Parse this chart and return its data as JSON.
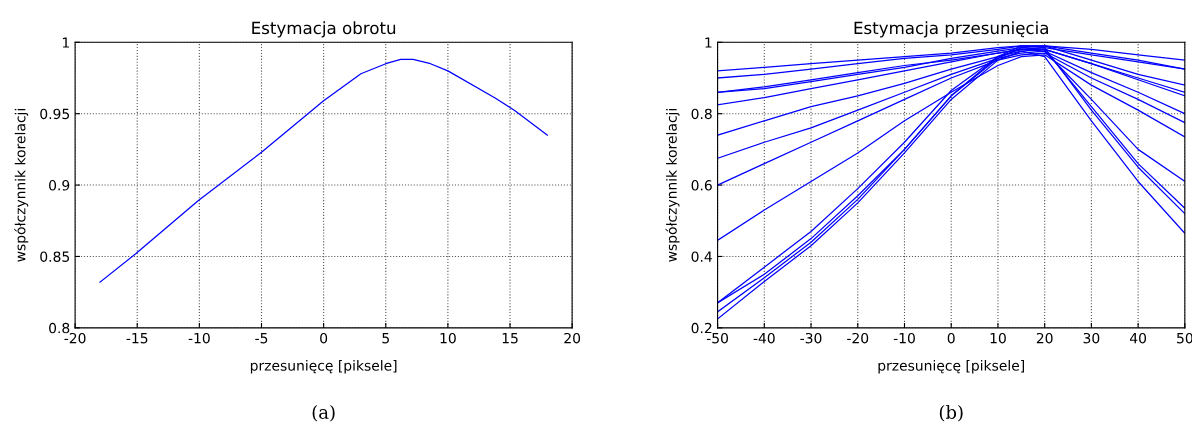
{
  "chart_data": [
    {
      "type": "line",
      "title": "Estymacja obrotu",
      "xlabel": "przesunięcę [piksele]",
      "ylabel": "współczynnik korelacji",
      "annotations": [
        "(a)"
      ],
      "xlim": [
        -20,
        20
      ],
      "ylim": [
        0.8,
        1
      ],
      "xticks": [
        -20,
        -15,
        -10,
        -5,
        0,
        5,
        10,
        15,
        20
      ],
      "yticks": [
        0.8,
        0.85,
        0.9,
        0.95,
        1
      ],
      "grid": true,
      "series": [
        {
          "color": "#0000ff",
          "x": [
            -18.0,
            -15.1,
            -10.1,
            -5.0,
            0,
            3.0,
            5.0,
            6.2,
            7.2,
            8.6,
            10,
            13.8,
            15.4,
            18.0
          ],
          "values": [
            0.832,
            0.852,
            0.889,
            0.923,
            0.959,
            0.978,
            0.985,
            0.988,
            0.988,
            0.985,
            0.98,
            0.961,
            0.952,
            0.935
          ]
        }
      ]
    },
    {
      "type": "line",
      "title": "Estymacja przesunięcia",
      "xlabel": "przesunięcę [piksele]",
      "ylabel": "współczynnik korelacji",
      "annotations": [
        "(b)"
      ],
      "xlim": [
        -50,
        50
      ],
      "ylim": [
        0.2,
        1
      ],
      "xticks": [
        -50,
        -40,
        -30,
        -20,
        -10,
        0,
        10,
        20,
        30,
        40,
        50
      ],
      "yticks": [
        0.2,
        0.4,
        0.6,
        0.8,
        1
      ],
      "grid": true,
      "x": [
        -50,
        -40,
        -30,
        -20,
        -10,
        0,
        10,
        15,
        20,
        30,
        40,
        50
      ],
      "series": [
        {
          "color": "#0000ff",
          "values": [
            0.92,
            0.93,
            0.94,
            0.95,
            0.96,
            0.97,
            0.985,
            0.99,
            0.99,
            0.98,
            0.965,
            0.95
          ]
        },
        {
          "color": "#0000ff",
          "values": [
            0.9,
            0.91,
            0.925,
            0.94,
            0.955,
            0.965,
            0.98,
            0.99,
            0.99,
            0.97,
            0.95,
            0.925
          ]
        },
        {
          "color": "#0000ff",
          "values": [
            0.86,
            0.875,
            0.895,
            0.915,
            0.935,
            0.95,
            0.97,
            0.98,
            0.985,
            0.965,
            0.945,
            0.925
          ]
        },
        {
          "color": "#0000ff",
          "values": [
            0.86,
            0.87,
            0.89,
            0.91,
            0.93,
            0.955,
            0.975,
            0.985,
            0.99,
            0.95,
            0.91,
            0.88
          ]
        },
        {
          "color": "#0000ff",
          "values": [
            0.825,
            0.845,
            0.87,
            0.895,
            0.92,
            0.945,
            0.97,
            0.98,
            0.98,
            0.94,
            0.9,
            0.86
          ]
        },
        {
          "color": "#0000ff",
          "values": [
            0.74,
            0.78,
            0.82,
            0.85,
            0.885,
            0.925,
            0.96,
            0.975,
            0.98,
            0.94,
            0.895,
            0.85
          ]
        },
        {
          "color": "#0000ff",
          "values": [
            0.675,
            0.72,
            0.76,
            0.81,
            0.86,
            0.91,
            0.955,
            0.97,
            0.975,
            0.915,
            0.86,
            0.8
          ]
        },
        {
          "color": "#0000ff",
          "values": [
            0.6,
            0.66,
            0.72,
            0.78,
            0.84,
            0.9,
            0.95,
            0.965,
            0.97,
            0.9,
            0.84,
            0.775
          ]
        },
        {
          "color": "#0000ff",
          "values": [
            0.445,
            0.53,
            0.61,
            0.69,
            0.78,
            0.86,
            0.935,
            0.96,
            0.965,
            0.88,
            0.81,
            0.735
          ]
        },
        {
          "color": "#0000ff",
          "values": [
            0.27,
            0.37,
            0.47,
            0.59,
            0.72,
            0.865,
            0.96,
            0.98,
            0.975,
            0.84,
            0.7,
            0.61
          ]
        },
        {
          "color": "#0000ff",
          "values": [
            0.27,
            0.35,
            0.45,
            0.57,
            0.7,
            0.85,
            0.955,
            0.985,
            0.98,
            0.82,
            0.66,
            0.535
          ]
        },
        {
          "color": "#0000ff",
          "values": [
            0.245,
            0.34,
            0.44,
            0.56,
            0.7,
            0.85,
            0.96,
            0.99,
            0.985,
            0.81,
            0.65,
            0.52
          ]
        },
        {
          "color": "#0000ff",
          "values": [
            0.225,
            0.33,
            0.43,
            0.55,
            0.69,
            0.84,
            0.95,
            0.975,
            0.96,
            0.78,
            0.61,
            0.465
          ]
        }
      ]
    }
  ]
}
